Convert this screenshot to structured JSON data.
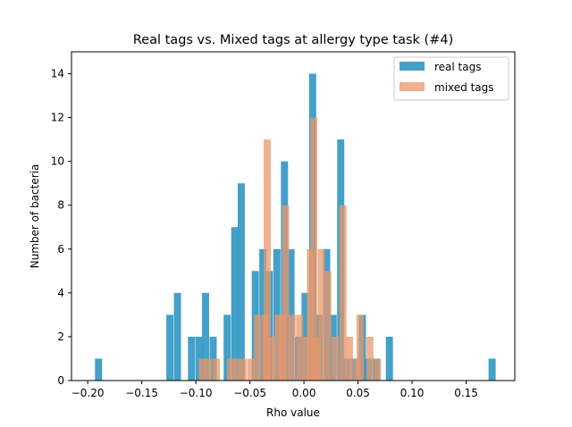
{
  "chart_data": {
    "type": "bar",
    "title": "Real tags vs. Mixed tags at allergy type task (#4)",
    "xlabel": "Rho value",
    "ylabel": "Number of bacteria",
    "xlim": [
      -0.215,
      0.195
    ],
    "ylim": [
      0,
      15
    ],
    "xticks": [
      -0.2,
      -0.15,
      -0.1,
      -0.05,
      0.0,
      0.05,
      0.1,
      0.15
    ],
    "xtick_labels": [
      "−0.20",
      "−0.15",
      "−0.10",
      "−0.05",
      "0.00",
      "0.05",
      "0.10",
      "0.15"
    ],
    "yticks": [
      0,
      2,
      4,
      6,
      8,
      10,
      12,
      14
    ],
    "ytick_labels": [
      "0",
      "2",
      "4",
      "6",
      "8",
      "10",
      "12",
      "14"
    ],
    "legend_position": "top-right",
    "bin_width": 0.00658,
    "series": [
      {
        "name": "real tags",
        "color": "#2e96c3",
        "opacity": 0.9,
        "points": [
          [
            -0.19,
            1
          ],
          [
            -0.124,
            3
          ],
          [
            -0.117,
            4
          ],
          [
            -0.104,
            2
          ],
          [
            -0.097,
            2
          ],
          [
            -0.091,
            4
          ],
          [
            -0.084,
            2
          ],
          [
            -0.071,
            3
          ],
          [
            -0.064,
            7
          ],
          [
            -0.058,
            9
          ],
          [
            -0.045,
            5
          ],
          [
            -0.038,
            6
          ],
          [
            -0.032,
            5
          ],
          [
            -0.025,
            6
          ],
          [
            -0.018,
            10
          ],
          [
            -0.012,
            6
          ],
          [
            -0.005,
            2
          ],
          [
            0.001,
            4
          ],
          [
            0.008,
            14
          ],
          [
            0.014,
            3
          ],
          [
            0.021,
            6
          ],
          [
            0.027,
            3
          ],
          [
            0.034,
            11
          ],
          [
            0.04,
            1
          ],
          [
            0.047,
            1
          ],
          [
            0.054,
            3
          ],
          [
            0.06,
            1
          ],
          [
            0.067,
            1
          ],
          [
            0.079,
            2
          ],
          [
            0.174,
            1
          ]
        ]
      },
      {
        "name": "mixed tags",
        "color": "#e9976a",
        "opacity": 0.75,
        "points": [
          [
            -0.094,
            1
          ],
          [
            -0.088,
            1
          ],
          [
            -0.081,
            1
          ],
          [
            -0.068,
            1
          ],
          [
            -0.062,
            1
          ],
          [
            -0.056,
            1
          ],
          [
            -0.049,
            1
          ],
          [
            -0.043,
            3
          ],
          [
            -0.036,
            3
          ],
          [
            -0.034,
            11
          ],
          [
            -0.03,
            2
          ],
          [
            -0.024,
            3
          ],
          [
            -0.02,
            3
          ],
          [
            -0.017,
            8
          ],
          [
            -0.011,
            3
          ],
          [
            -0.004,
            3
          ],
          [
            0.002,
            2
          ],
          [
            0.006,
            6
          ],
          [
            0.009,
            12
          ],
          [
            0.012,
            2
          ],
          [
            0.016,
            6
          ],
          [
            0.022,
            5
          ],
          [
            0.029,
            2
          ],
          [
            0.036,
            8
          ],
          [
            0.042,
            2
          ],
          [
            0.049,
            1
          ],
          [
            0.052,
            3
          ],
          [
            0.061,
            2
          ],
          [
            0.068,
            1
          ]
        ]
      }
    ]
  }
}
